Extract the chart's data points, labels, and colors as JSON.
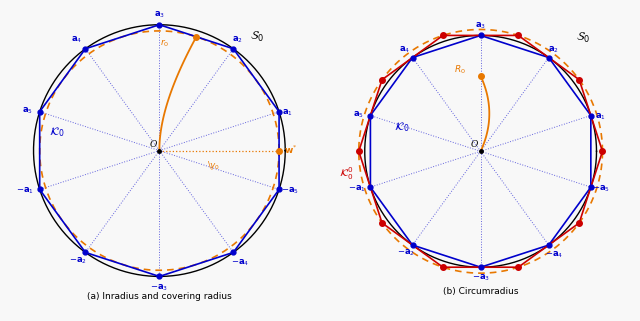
{
  "n_sides": 10,
  "blue_color": "#0000cc",
  "orange_color": "#e87800",
  "red_color": "#cc0000",
  "black_color": "#000000",
  "bg_color": "#f8f8f8",
  "caption_left": "(a) Inradius and covering radius",
  "caption_right": "(b) Circumradius"
}
